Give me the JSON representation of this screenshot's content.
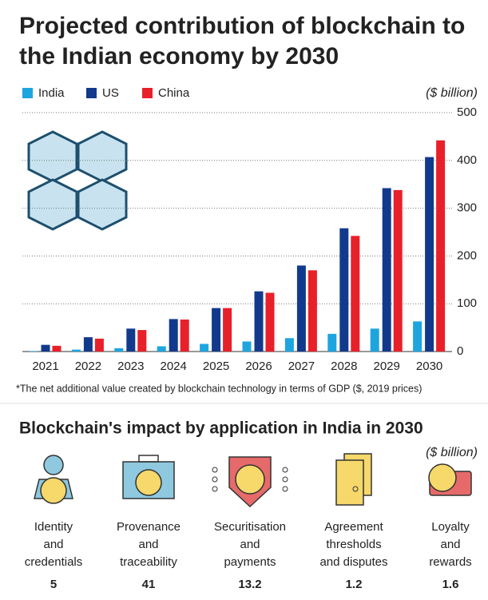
{
  "chart_data": {
    "type": "bar",
    "title": "Projected contribution of blockchain to the Indian economy by 2030",
    "unit": "($ billion)",
    "categories": [
      "2021",
      "2022",
      "2023",
      "2024",
      "2025",
      "2026",
      "2027",
      "2028",
      "2029",
      "2030"
    ],
    "series": [
      {
        "name": "India",
        "color": "#1ea5e0",
        "values": [
          1,
          4,
          7,
          11,
          16,
          21,
          28,
          37,
          48,
          63
        ]
      },
      {
        "name": "US",
        "color": "#123a8c",
        "values": [
          14,
          30,
          48,
          68,
          91,
          126,
          180,
          258,
          342,
          407
        ]
      },
      {
        "name": "China",
        "color": "#e8202a",
        "values": [
          12,
          27,
          45,
          67,
          91,
          123,
          170,
          242,
          338,
          442
        ]
      }
    ],
    "ylim": [
      0,
      500
    ],
    "yticks": [
      0,
      100,
      200,
      300,
      400,
      500
    ],
    "grid": true,
    "note": "*The net additional value created by blockchain technology in terms of GDP ($, 2019 prices)"
  },
  "impact": {
    "title": "Blockchain's impact by application in India in 2030",
    "unit": "($ billion)",
    "items": [
      {
        "label_lines": [
          "Identity",
          "and",
          "credentials"
        ],
        "value": 5
      },
      {
        "label_lines": [
          "Provenance",
          "and",
          "traceability"
        ],
        "value": 41
      },
      {
        "label_lines": [
          "Securitisation",
          "and",
          "payments"
        ],
        "value": 13.2
      },
      {
        "label_lines": [
          "Agreement",
          "thresholds",
          "and disputes"
        ],
        "value": 1.2
      },
      {
        "label_lines": [
          "Loyalty",
          "and",
          "rewards"
        ],
        "value": 1.6
      }
    ]
  }
}
